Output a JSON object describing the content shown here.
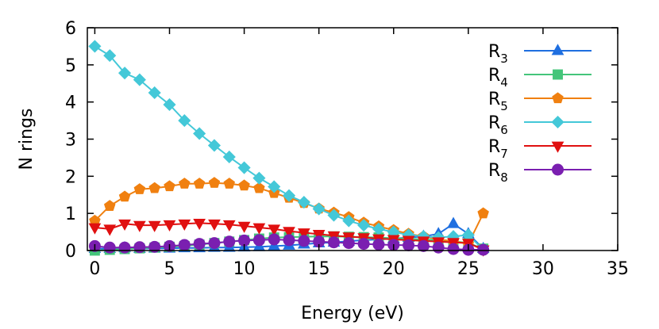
{
  "chart_data": {
    "type": "line",
    "title": "",
    "xlabel": "Energy (eV)",
    "ylabel": "N rings",
    "xlim": [
      -0.5,
      35
    ],
    "ylim": [
      0,
      6
    ],
    "xticks": [
      0,
      5,
      10,
      15,
      20,
      25,
      30,
      35
    ],
    "yticks": [
      0,
      1,
      2,
      3,
      4,
      5,
      6
    ],
    "grid": false,
    "legend_position": "top-right",
    "x": [
      0,
      1,
      2,
      3,
      4,
      5,
      6,
      7,
      8,
      9,
      10,
      11,
      12,
      13,
      14,
      15,
      16,
      17,
      18,
      19,
      20,
      21,
      22,
      23,
      24,
      25,
      26
    ],
    "series": [
      {
        "name": "R",
        "subscript": "3",
        "color": "#1f6fe0",
        "marker": "triangle-up",
        "values": [
          0.05,
          0.05,
          0.07,
          0.05,
          0.06,
          0.06,
          0.07,
          0.07,
          0.08,
          0.08,
          0.09,
          0.1,
          0.12,
          0.14,
          0.17,
          0.2,
          0.22,
          0.25,
          0.28,
          0.3,
          0.32,
          0.35,
          0.38,
          0.45,
          0.72,
          0.45,
          0.05
        ]
      },
      {
        "name": "R",
        "subscript": "4",
        "color": "#44c57a",
        "marker": "square",
        "values": [
          0.0,
          0.02,
          0.04,
          0.06,
          0.08,
          0.1,
          0.12,
          0.16,
          0.2,
          0.24,
          0.28,
          0.32,
          0.35,
          0.36,
          0.37,
          0.38,
          0.38,
          0.37,
          0.36,
          0.35,
          0.33,
          0.32,
          0.3,
          0.28,
          0.25,
          0.2,
          0.05
        ]
      },
      {
        "name": "R",
        "subscript": "5",
        "color": "#f08010",
        "marker": "pentagon",
        "values": [
          0.8,
          1.2,
          1.45,
          1.65,
          1.68,
          1.73,
          1.8,
          1.8,
          1.82,
          1.8,
          1.75,
          1.68,
          1.55,
          1.42,
          1.28,
          1.13,
          1.02,
          0.9,
          0.75,
          0.65,
          0.55,
          0.45,
          0.38,
          0.3,
          0.25,
          0.18,
          1.0
        ]
      },
      {
        "name": "R",
        "subscript": "6",
        "color": "#44c8d8",
        "marker": "diamond",
        "values": [
          5.5,
          5.25,
          4.78,
          4.6,
          4.25,
          3.93,
          3.5,
          3.15,
          2.83,
          2.52,
          2.23,
          1.95,
          1.72,
          1.48,
          1.3,
          1.12,
          0.95,
          0.8,
          0.68,
          0.58,
          0.5,
          0.42,
          0.38,
          0.35,
          0.38,
          0.42,
          0.02
        ]
      },
      {
        "name": "R",
        "subscript": "7",
        "color": "#e01010",
        "marker": "triangle-down",
        "values": [
          0.62,
          0.58,
          0.72,
          0.68,
          0.68,
          0.7,
          0.72,
          0.74,
          0.72,
          0.7,
          0.66,
          0.62,
          0.58,
          0.52,
          0.48,
          0.44,
          0.4,
          0.37,
          0.35,
          0.32,
          0.3,
          0.28,
          0.26,
          0.24,
          0.22,
          0.2,
          0.02
        ]
      },
      {
        "name": "R",
        "subscript": "8",
        "color": "#7a1fb0",
        "marker": "circle",
        "values": [
          0.12,
          0.08,
          0.08,
          0.09,
          0.1,
          0.12,
          0.15,
          0.18,
          0.2,
          0.24,
          0.27,
          0.28,
          0.3,
          0.28,
          0.26,
          0.24,
          0.22,
          0.2,
          0.18,
          0.16,
          0.15,
          0.14,
          0.12,
          0.08,
          0.04,
          0.02,
          0.02
        ]
      }
    ]
  }
}
